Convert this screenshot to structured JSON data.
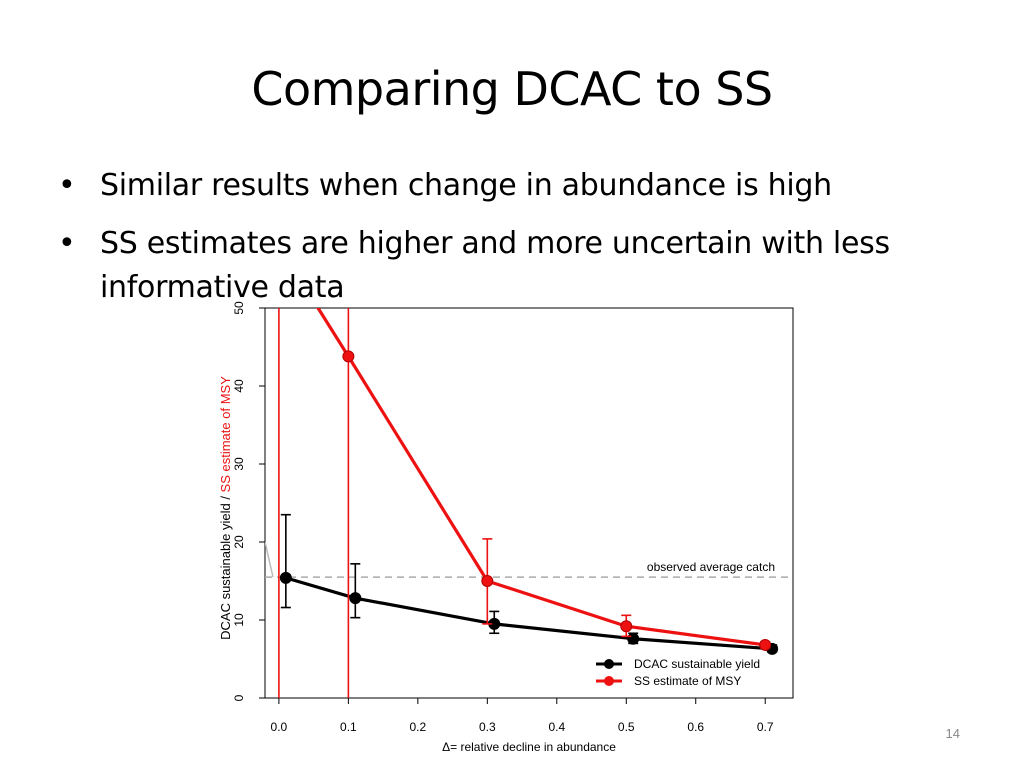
{
  "slide": {
    "title": "Comparing DCAC to SS",
    "bullets": [
      "Similar results when change in abundance is high",
      "SS estimates are higher and more uncertain with less informative data"
    ],
    "page_number": "14"
  },
  "chart_data": {
    "type": "line",
    "xlabel": "Δ= relative decline in abundance",
    "ylabel_parts": [
      "DCAC sustainable yield",
      "  /  ",
      "SS estimate of MSY"
    ],
    "xlim": [
      -0.02,
      0.74
    ],
    "ylim": [
      0,
      50
    ],
    "x_ticks": [
      "0.0",
      "0.1",
      "0.2",
      "0.3",
      "0.4",
      "0.5",
      "0.6",
      "0.7"
    ],
    "y_ticks": [
      "0",
      "10",
      "20",
      "30",
      "40",
      "50"
    ],
    "reference_line": {
      "label": "observed average catch",
      "y": 15.5
    },
    "colors": {
      "dcac": "#000000",
      "ss": "#ee1111",
      "ylabel_ss": "#ee1111",
      "reference": "#aaaaaa"
    },
    "series": [
      {
        "name": "DCAC sustainable yield",
        "points": [
          {
            "x": 0.01,
            "y": 15.4,
            "lo": 11.6,
            "hi": 23.5
          },
          {
            "x": 0.11,
            "y": 12.8,
            "lo": 10.3,
            "hi": 17.2
          },
          {
            "x": 0.31,
            "y": 9.5,
            "lo": 8.3,
            "hi": 11.1
          },
          {
            "x": 0.51,
            "y": 7.6,
            "lo": 7.0,
            "hi": 8.3
          },
          {
            "x": 0.71,
            "y": 6.3,
            "lo": 5.9,
            "hi": 6.8
          }
        ]
      },
      {
        "name": "SS estimate of MSY",
        "points": [
          {
            "x": 0.0,
            "y": 58,
            "lo": 0,
            "hi": 60
          },
          {
            "x": 0.1,
            "y": 43.8,
            "lo": 0,
            "hi": 60
          },
          {
            "x": 0.3,
            "y": 15.0,
            "lo": 9.5,
            "hi": 20.4
          },
          {
            "x": 0.5,
            "y": 9.2,
            "lo": 7.9,
            "hi": 10.6
          },
          {
            "x": 0.7,
            "y": 6.8,
            "lo": 6.4,
            "hi": 7.2
          }
        ]
      }
    ],
    "legend": "bottom-right"
  }
}
